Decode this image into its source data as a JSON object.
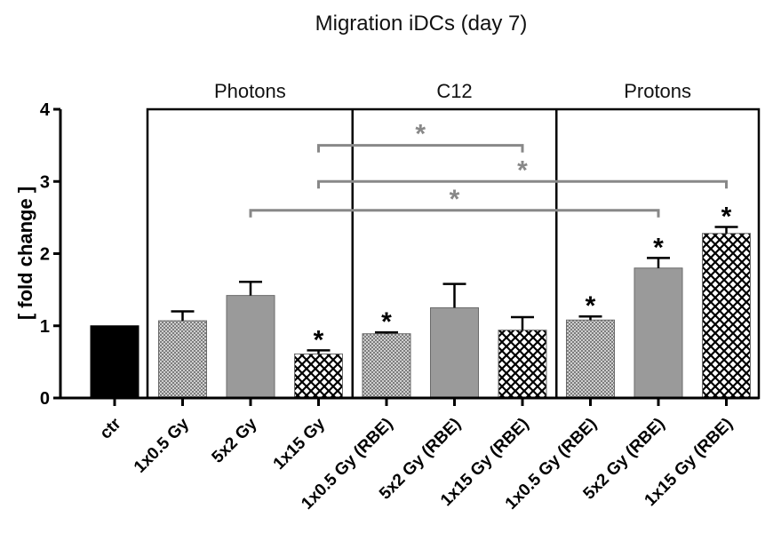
{
  "chart_data": {
    "type": "bar",
    "title": "Migration iDCs (day 7)",
    "ylabel": "[ fold change ]",
    "xlabel": "",
    "ylim": [
      0,
      4
    ],
    "yticks": [
      0,
      1,
      2,
      3,
      4
    ],
    "categories": [
      "ctr",
      "1x0.5 Gy",
      "5x2 Gy",
      "1x15 Gy",
      "1x0.5 Gy (RBE)",
      "5x2 Gy (RBE)",
      "1x15 Gy (RBE)",
      "1x0.5 Gy (RBE)",
      "5x2 Gy (RBE)",
      "1x15 Gy (RBE)"
    ],
    "values": [
      1.0,
      1.07,
      1.42,
      0.61,
      0.89,
      1.25,
      0.94,
      1.08,
      1.8,
      2.28
    ],
    "errors": [
      0.0,
      0.13,
      0.19,
      0.05,
      0.02,
      0.33,
      0.18,
      0.05,
      0.14,
      0.09
    ],
    "fills": [
      "solid",
      "checker",
      "solid",
      "crosshatch",
      "checker",
      "solid",
      "crosshatch",
      "checker",
      "solid",
      "crosshatch"
    ],
    "colors": {
      "ctr": "#000000",
      "bar": "#9a9a9a",
      "bracket": "#888888",
      "star": "#000000"
    },
    "significance_marks": [
      {
        "bar": 3,
        "label": "*"
      },
      {
        "bar": 4,
        "label": "*"
      },
      {
        "bar": 7,
        "label": "*"
      },
      {
        "bar": 8,
        "label": "*"
      },
      {
        "bar": 9,
        "label": "*"
      }
    ],
    "groups": [
      {
        "label": "Photons",
        "first_bar": 1,
        "last_bar": 3
      },
      {
        "label": "C12",
        "first_bar": 4,
        "last_bar": 6
      },
      {
        "label": "Protons",
        "first_bar": 7,
        "last_bar": 9
      }
    ],
    "comparisons": [
      {
        "from_bar": 3,
        "to_bar": 6,
        "level": 3.5,
        "label": "*"
      },
      {
        "from_bar": 3,
        "to_bar": 9,
        "level": 3.0,
        "label": "*"
      },
      {
        "from_bar": 2,
        "to_bar": 8,
        "level": 2.6,
        "label": "*"
      }
    ],
    "grid": false
  }
}
